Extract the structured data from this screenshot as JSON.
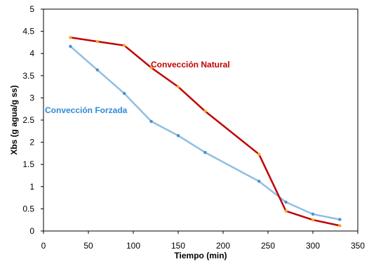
{
  "chart_data": {
    "type": "line",
    "xlabel": "Tiempo (min)",
    "ylabel": "Xbs (g agua/g ss)",
    "xlim": [
      0,
      350
    ],
    "ylim": [
      0,
      5
    ],
    "xticks": [
      0,
      50,
      100,
      150,
      200,
      250,
      300,
      350
    ],
    "yticks": [
      0,
      0.5,
      1,
      1.5,
      2,
      2.5,
      3,
      3.5,
      4,
      4.5,
      5
    ],
    "ytick_labels": [
      "0",
      "0.5",
      "1",
      "1.5",
      "2",
      "2.5",
      "3",
      "3.5",
      "4",
      "4.5",
      "5"
    ],
    "grid": false,
    "series": [
      {
        "name": "Convección Natural",
        "color": "#c00000",
        "marker_color": "#f5a623",
        "x": [
          30,
          60,
          90,
          120,
          150,
          180,
          240,
          270,
          300,
          330
        ],
        "y": [
          4.36,
          4.27,
          4.18,
          3.68,
          3.25,
          2.7,
          1.73,
          0.45,
          0.25,
          0.12
        ]
      },
      {
        "name": "Convección Forzada",
        "color": "#8fbfe3",
        "marker_color": "#4a8fd0",
        "x": [
          30,
          60,
          90,
          120,
          150,
          180,
          240,
          270,
          300,
          330
        ],
        "y": [
          4.16,
          3.63,
          3.1,
          2.47,
          2.15,
          1.77,
          1.12,
          0.65,
          0.38,
          0.26
        ]
      }
    ]
  }
}
